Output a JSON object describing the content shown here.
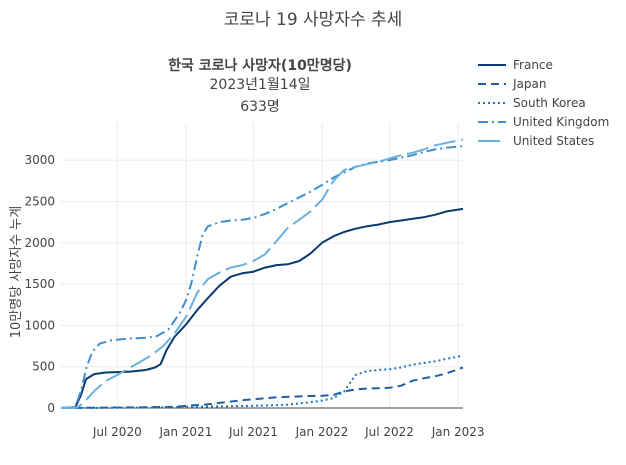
{
  "chart_data": {
    "type": "line",
    "title": "코로나 19 사망자수 추세",
    "xlabel": "",
    "ylabel": "10만명당 사망자수 누계",
    "annotation": {
      "line1": "한국 코로나 사망자(10만명당)",
      "line2": "2023년1월14일",
      "line3": "633명"
    },
    "x_range": [
      "2020-02-01",
      "2023-01-14"
    ],
    "ylim": [
      0,
      3450
    ],
    "x_ticks": [
      {
        "date": "2020-07-01",
        "label": "Jul 2020"
      },
      {
        "date": "2021-01-01",
        "label": "Jan 2021"
      },
      {
        "date": "2021-07-01",
        "label": "Jul 2021"
      },
      {
        "date": "2022-01-01",
        "label": "Jan 2022"
      },
      {
        "date": "2022-07-01",
        "label": "Jul 2022"
      },
      {
        "date": "2023-01-01",
        "label": "Jan 2023"
      }
    ],
    "y_ticks": [
      0,
      500,
      1000,
      1500,
      2000,
      2500,
      3000
    ],
    "grid": true,
    "legend_position": "top-right",
    "series": [
      {
        "name": "France",
        "color": "#0b3a6e",
        "dash": "solid",
        "points": [
          [
            "2020-02-01",
            0
          ],
          [
            "2020-03-10",
            10
          ],
          [
            "2020-03-25",
            150
          ],
          [
            "2020-04-08",
            350
          ],
          [
            "2020-04-30",
            410
          ],
          [
            "2020-05-31",
            430
          ],
          [
            "2020-08-01",
            440
          ],
          [
            "2020-09-15",
            460
          ],
          [
            "2020-10-10",
            490
          ],
          [
            "2020-10-25",
            530
          ],
          [
            "2020-11-10",
            700
          ],
          [
            "2020-12-01",
            860
          ],
          [
            "2021-01-01",
            1010
          ],
          [
            "2021-02-01",
            1190
          ],
          [
            "2021-03-01",
            1330
          ],
          [
            "2021-04-01",
            1480
          ],
          [
            "2021-05-01",
            1590
          ],
          [
            "2021-06-01",
            1630
          ],
          [
            "2021-07-01",
            1650
          ],
          [
            "2021-08-01",
            1700
          ],
          [
            "2021-09-01",
            1730
          ],
          [
            "2021-10-01",
            1740
          ],
          [
            "2021-11-01",
            1780
          ],
          [
            "2021-12-01",
            1870
          ],
          [
            "2022-01-01",
            2000
          ],
          [
            "2022-02-01",
            2080
          ],
          [
            "2022-03-01",
            2130
          ],
          [
            "2022-04-01",
            2170
          ],
          [
            "2022-05-01",
            2200
          ],
          [
            "2022-06-01",
            2220
          ],
          [
            "2022-07-01",
            2250
          ],
          [
            "2022-08-01",
            2270
          ],
          [
            "2022-09-01",
            2290
          ],
          [
            "2022-10-01",
            2310
          ],
          [
            "2022-11-01",
            2340
          ],
          [
            "2022-12-01",
            2380
          ],
          [
            "2023-01-14",
            2410
          ]
        ]
      },
      {
        "name": "Japan",
        "color": "#1f5fa6",
        "dash": "8,5",
        "points": [
          [
            "2020-02-01",
            0
          ],
          [
            "2020-06-01",
            5
          ],
          [
            "2020-09-01",
            8
          ],
          [
            "2020-12-01",
            15
          ],
          [
            "2021-01-01",
            25
          ],
          [
            "2021-03-01",
            45
          ],
          [
            "2021-06-01",
            95
          ],
          [
            "2021-09-01",
            130
          ],
          [
            "2021-12-01",
            145
          ],
          [
            "2022-01-01",
            148
          ],
          [
            "2022-02-01",
            160
          ],
          [
            "2022-03-01",
            200
          ],
          [
            "2022-04-01",
            225
          ],
          [
            "2022-05-01",
            235
          ],
          [
            "2022-06-01",
            240
          ],
          [
            "2022-07-01",
            245
          ],
          [
            "2022-08-01",
            270
          ],
          [
            "2022-09-01",
            330
          ],
          [
            "2022-10-01",
            360
          ],
          [
            "2022-11-01",
            385
          ],
          [
            "2022-12-01",
            420
          ],
          [
            "2023-01-14",
            490
          ]
        ]
      },
      {
        "name": "South Korea",
        "color": "#2277c2",
        "dash": "2,3",
        "points": [
          [
            "2020-02-01",
            0
          ],
          [
            "2020-06-01",
            2
          ],
          [
            "2020-09-01",
            5
          ],
          [
            "2020-12-01",
            10
          ],
          [
            "2021-01-01",
            15
          ],
          [
            "2021-04-01",
            20
          ],
          [
            "2021-07-01",
            25
          ],
          [
            "2021-10-01",
            40
          ],
          [
            "2021-12-01",
            70
          ],
          [
            "2022-01-01",
            90
          ],
          [
            "2022-02-01",
            120
          ],
          [
            "2022-03-01",
            200
          ],
          [
            "2022-04-01",
            400
          ],
          [
            "2022-05-01",
            445
          ],
          [
            "2022-06-01",
            460
          ],
          [
            "2022-07-01",
            470
          ],
          [
            "2022-08-01",
            490
          ],
          [
            "2022-09-01",
            525
          ],
          [
            "2022-10-01",
            545
          ],
          [
            "2022-11-01",
            565
          ],
          [
            "2022-12-01",
            595
          ],
          [
            "2023-01-14",
            633
          ]
        ]
      },
      {
        "name": "United Kingdom",
        "color": "#3f8fd0",
        "dash": "10,4,2,4",
        "points": [
          [
            "2020-02-01",
            0
          ],
          [
            "2020-03-10",
            10
          ],
          [
            "2020-03-25",
            200
          ],
          [
            "2020-04-10",
            500
          ],
          [
            "2020-04-25",
            680
          ],
          [
            "2020-05-15",
            780
          ],
          [
            "2020-06-15",
            820
          ],
          [
            "2020-08-01",
            840
          ],
          [
            "2020-09-15",
            850
          ],
          [
            "2020-10-15",
            870
          ],
          [
            "2020-11-15",
            950
          ],
          [
            "2020-12-15",
            1150
          ],
          [
            "2021-01-01",
            1300
          ],
          [
            "2021-01-15",
            1500
          ],
          [
            "2021-02-01",
            1850
          ],
          [
            "2021-02-15",
            2100
          ],
          [
            "2021-03-01",
            2200
          ],
          [
            "2021-04-01",
            2250
          ],
          [
            "2021-05-01",
            2270
          ],
          [
            "2021-06-01",
            2280
          ],
          [
            "2021-07-01",
            2300
          ],
          [
            "2021-08-01",
            2350
          ],
          [
            "2021-09-01",
            2410
          ],
          [
            "2021-10-01",
            2480
          ],
          [
            "2021-11-01",
            2550
          ],
          [
            "2021-12-01",
            2620
          ],
          [
            "2022-01-01",
            2700
          ],
          [
            "2022-02-01",
            2790
          ],
          [
            "2022-03-01",
            2850
          ],
          [
            "2022-04-01",
            2920
          ],
          [
            "2022-05-01",
            2960
          ],
          [
            "2022-06-01",
            2980
          ],
          [
            "2022-07-01",
            3000
          ],
          [
            "2022-08-01",
            3030
          ],
          [
            "2022-09-01",
            3060
          ],
          [
            "2022-10-01",
            3100
          ],
          [
            "2022-11-01",
            3130
          ],
          [
            "2022-12-01",
            3150
          ],
          [
            "2023-01-14",
            3170
          ]
        ]
      },
      {
        "name": "United States",
        "color": "#6ab0de",
        "dash": "22,6",
        "points": [
          [
            "2020-02-01",
            0
          ],
          [
            "2020-03-15",
            5
          ],
          [
            "2020-04-01",
            60
          ],
          [
            "2020-05-01",
            210
          ],
          [
            "2020-06-01",
            330
          ],
          [
            "2020-07-01",
            400
          ],
          [
            "2020-08-01",
            480
          ],
          [
            "2020-09-01",
            560
          ],
          [
            "2020-10-01",
            640
          ],
          [
            "2020-11-01",
            750
          ],
          [
            "2020-12-01",
            900
          ],
          [
            "2021-01-01",
            1100
          ],
          [
            "2021-02-01",
            1400
          ],
          [
            "2021-03-01",
            1560
          ],
          [
            "2021-04-01",
            1640
          ],
          [
            "2021-05-01",
            1700
          ],
          [
            "2021-06-01",
            1730
          ],
          [
            "2021-07-01",
            1780
          ],
          [
            "2021-08-01",
            1860
          ],
          [
            "2021-09-01",
            2020
          ],
          [
            "2021-10-01",
            2180
          ],
          [
            "2021-11-01",
            2280
          ],
          [
            "2021-12-01",
            2380
          ],
          [
            "2022-01-01",
            2520
          ],
          [
            "2022-02-01",
            2750
          ],
          [
            "2022-03-01",
            2880
          ],
          [
            "2022-04-01",
            2920
          ],
          [
            "2022-05-01",
            2950
          ],
          [
            "2022-06-01",
            2980
          ],
          [
            "2022-07-01",
            3020
          ],
          [
            "2022-08-01",
            3060
          ],
          [
            "2022-09-01",
            3090
          ],
          [
            "2022-10-01",
            3130
          ],
          [
            "2022-11-01",
            3180
          ],
          [
            "2022-12-01",
            3210
          ],
          [
            "2023-01-14",
            3250
          ]
        ]
      }
    ]
  }
}
